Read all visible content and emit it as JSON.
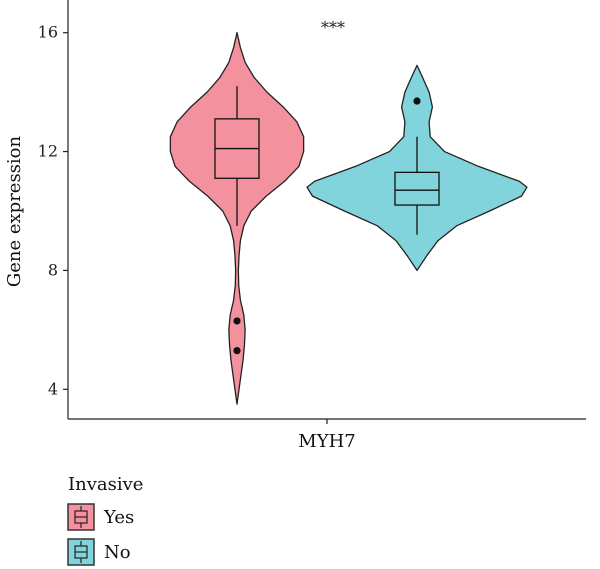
{
  "chart_data": {
    "type": "violin",
    "ylabel": "Gene expression",
    "xlabel": "",
    "categories": [
      "MYH7"
    ],
    "yticks": [
      4,
      8,
      12,
      16
    ],
    "ylim": [
      3.0,
      17.1
    ],
    "significance": "***",
    "legend": {
      "title": "Invasive",
      "position": "bottom-left"
    },
    "series": [
      {
        "name": "Yes",
        "color": "#F4919F",
        "box": {
          "whisker_low": 9.5,
          "q1": 11.1,
          "median": 12.1,
          "q3": 13.1,
          "whisker_high": 14.2
        },
        "outliers": [
          6.3,
          5.3
        ],
        "density": [
          [
            3.5,
            0.0
          ],
          [
            4.0,
            0.03
          ],
          [
            4.5,
            0.06
          ],
          [
            5.0,
            0.09
          ],
          [
            5.5,
            0.11
          ],
          [
            6.0,
            0.12
          ],
          [
            6.5,
            0.1
          ],
          [
            7.0,
            0.05
          ],
          [
            7.5,
            0.025
          ],
          [
            8.0,
            0.02
          ],
          [
            8.5,
            0.03
          ],
          [
            9.0,
            0.05
          ],
          [
            9.5,
            0.1
          ],
          [
            10.0,
            0.21
          ],
          [
            10.5,
            0.43
          ],
          [
            11.0,
            0.7
          ],
          [
            11.5,
            0.91
          ],
          [
            12.0,
            0.98
          ],
          [
            12.5,
            0.98
          ],
          [
            13.0,
            0.88
          ],
          [
            13.5,
            0.68
          ],
          [
            14.0,
            0.44
          ],
          [
            14.5,
            0.25
          ],
          [
            15.0,
            0.12
          ],
          [
            15.5,
            0.05
          ],
          [
            16.0,
            0.0
          ]
        ]
      },
      {
        "name": "No",
        "color": "#82D4DC",
        "box": {
          "whisker_low": 9.2,
          "q1": 10.2,
          "median": 10.7,
          "q3": 11.3,
          "whisker_high": 12.5
        },
        "outliers": [
          13.7
        ],
        "density": [
          [
            8.0,
            0.0
          ],
          [
            8.5,
            0.09
          ],
          [
            9.0,
            0.19
          ],
          [
            9.5,
            0.36
          ],
          [
            10.0,
            0.66
          ],
          [
            10.5,
            0.95
          ],
          [
            10.8,
            1.0
          ],
          [
            11.0,
            0.93
          ],
          [
            11.5,
            0.56
          ],
          [
            12.0,
            0.25
          ],
          [
            12.5,
            0.12
          ],
          [
            13.0,
            0.11
          ],
          [
            13.5,
            0.14
          ],
          [
            14.0,
            0.11
          ],
          [
            14.5,
            0.05
          ],
          [
            14.9,
            0.0
          ]
        ]
      }
    ]
  }
}
